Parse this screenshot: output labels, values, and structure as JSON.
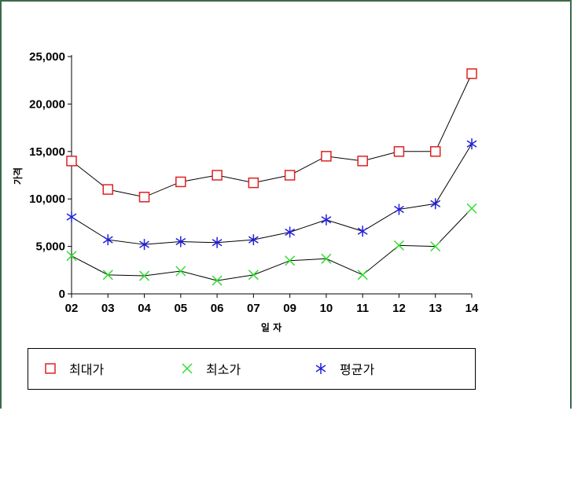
{
  "chart_data": {
    "type": "line",
    "categories": [
      "02",
      "03",
      "04",
      "05",
      "06",
      "07",
      "09",
      "10",
      "11",
      "12",
      "13",
      "14"
    ],
    "series": [
      {
        "name": "최대가",
        "color": "#e02020",
        "marker": "square",
        "values": [
          14000,
          11000,
          10200,
          11800,
          12500,
          11700,
          12500,
          14500,
          14000,
          15000,
          15000,
          23200
        ]
      },
      {
        "name": "최소가",
        "color": "#33dd33",
        "marker": "x",
        "values": [
          4000,
          2000,
          1900,
          2400,
          1400,
          2000,
          3500,
          3700,
          2000,
          5100,
          5000,
          9000
        ]
      },
      {
        "name": "평균가",
        "color": "#2020dd",
        "marker": "asterisk",
        "values": [
          8100,
          5700,
          5200,
          5500,
          5400,
          5700,
          6500,
          7800,
          6600,
          8900,
          9500,
          15800
        ]
      }
    ],
    "yticks": [
      "0",
      "5,000",
      "10,000",
      "15,000",
      "20,000",
      "25,000"
    ],
    "ylim": [
      0,
      25000
    ],
    "xlabel": "일  자",
    "ylabel": "가격",
    "grid": false,
    "legend_position": "bottom"
  }
}
